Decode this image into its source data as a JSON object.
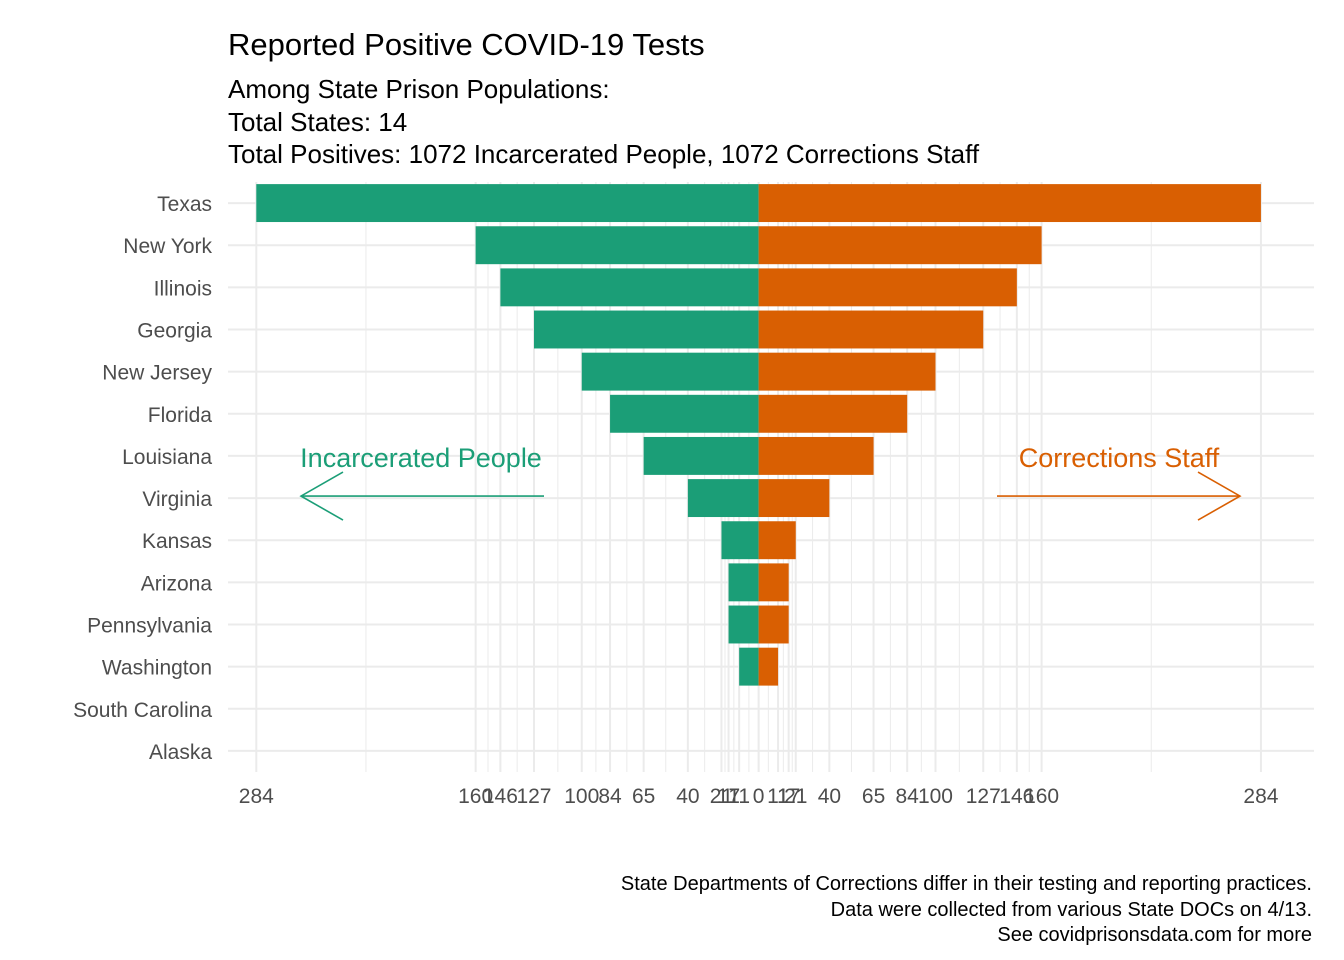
{
  "chart_data": {
    "type": "bar",
    "orientation": "horizontal",
    "layout": "diverging",
    "title": "Reported Positive COVID-19 Tests",
    "subtitle_lines": [
      "Among State Prison Populations:",
      "Total States: 14",
      "Total Positives: 1072 Incarcerated People, 1072 Corrections Staff"
    ],
    "categories": [
      "Texas",
      "New York",
      "Illinois",
      "Georgia",
      "New Jersey",
      "Florida",
      "Louisiana",
      "Virginia",
      "Kansas",
      "Arizona",
      "Pennsylvania",
      "Washington",
      "South Carolina",
      "Alaska"
    ],
    "series": [
      {
        "name": "Incarcerated People",
        "color": "#1b9e77",
        "direction": "left",
        "values": [
          284,
          160,
          146,
          127,
          100,
          84,
          65,
          40,
          21,
          17,
          17,
          11,
          0,
          0
        ]
      },
      {
        "name": "Corrections Staff",
        "color": "#d95f02",
        "direction": "right",
        "values": [
          284,
          160,
          146,
          127,
          100,
          84,
          65,
          40,
          21,
          17,
          17,
          11,
          0,
          0
        ]
      }
    ],
    "xlim": [
      -300,
      314
    ],
    "x_tick_values": [
      -284,
      -160,
      -146,
      -127,
      -100,
      -84,
      -65,
      -40,
      -21,
      -17,
      -11,
      0,
      11,
      17,
      21,
      40,
      65,
      84,
      100,
      127,
      146,
      160,
      284
    ],
    "x_tick_labels": [
      "284",
      "160",
      "146",
      "127",
      "100",
      "84",
      "65",
      "40",
      "21",
      "17",
      "11",
      "0",
      "11",
      "17",
      "21",
      "40",
      "65",
      "84",
      "100",
      "127",
      "146",
      "160",
      "284"
    ],
    "annotations": [
      {
        "text": "Incarcerated People",
        "color": "#1b9e77",
        "arrow": "left"
      },
      {
        "text": "Corrections Staff",
        "color": "#d95f02",
        "arrow": "right"
      }
    ],
    "caption_lines": [
      "State Departments of Corrections differ in their testing and reporting practices.",
      "Data were collected from various State DOCs on 4/13.",
      "See covidprisonsdata.com for more"
    ],
    "grid": true,
    "legend": "none"
  }
}
